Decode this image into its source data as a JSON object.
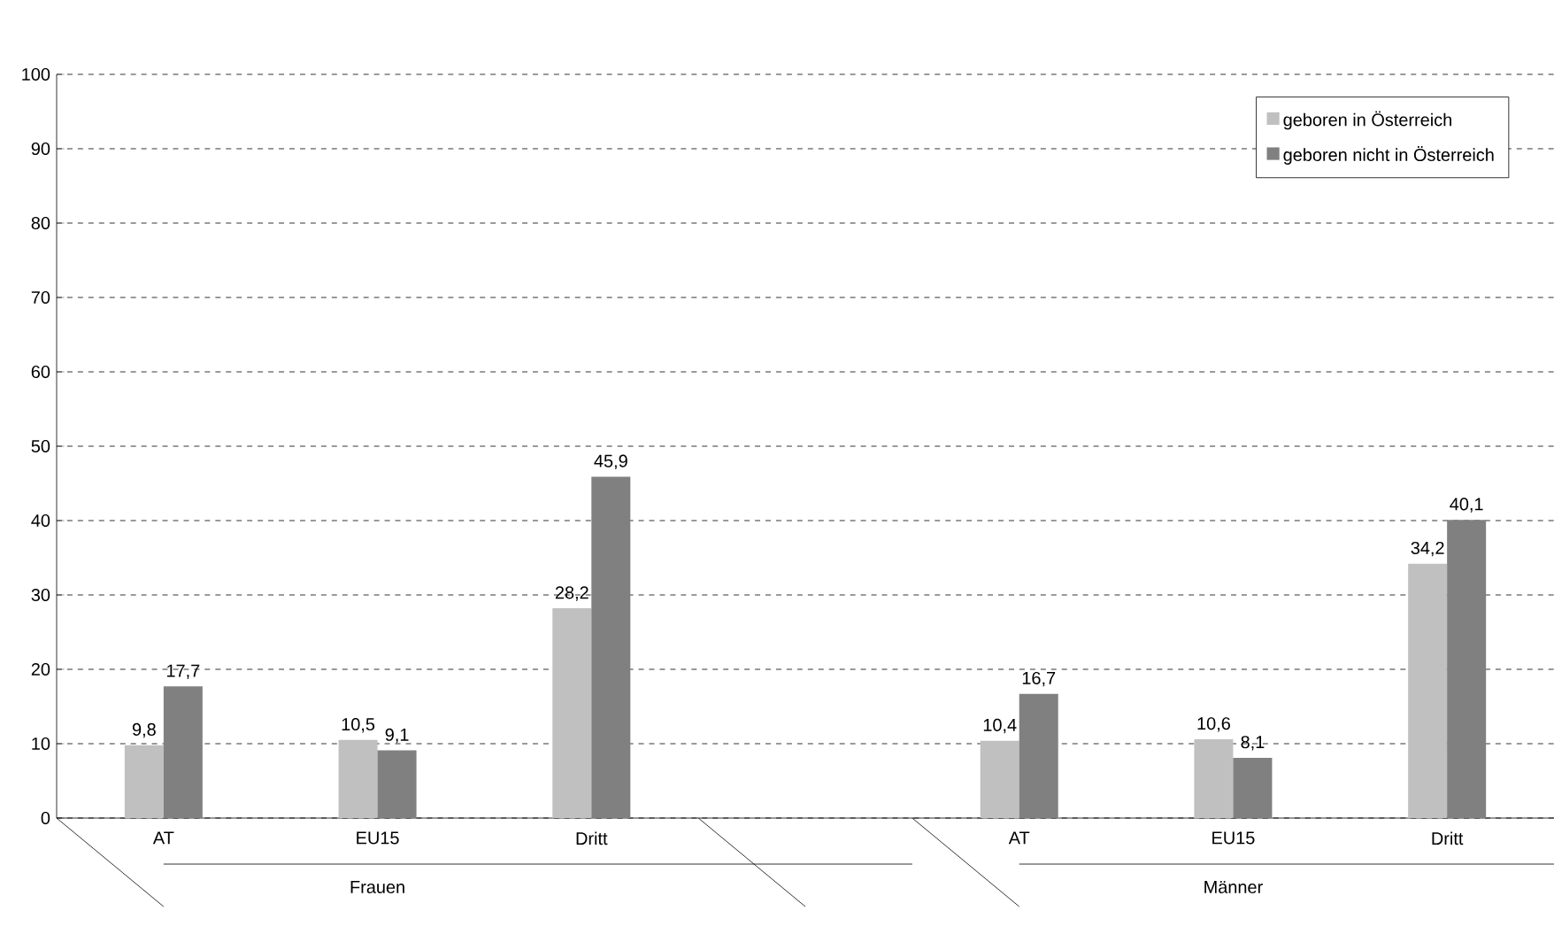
{
  "chart_data": {
    "type": "bar",
    "categories": [
      "AT",
      "EU15",
      "Dritt",
      null,
      "AT",
      "EU15",
      "Dritt"
    ],
    "series": [
      {
        "name": "geboren in Österreich",
        "color": "#c0c0c0",
        "values": [
          9.8,
          10.5,
          28.2,
          null,
          10.4,
          10.6,
          34.2
        ],
        "value_labels": [
          "9,8",
          "10,5",
          "28,2",
          null,
          "10,4",
          "10,6",
          "34,2"
        ]
      },
      {
        "name": "geboren nicht in Österreich",
        "color": "#808080",
        "values": [
          17.7,
          9.1,
          45.9,
          null,
          16.7,
          8.1,
          40.1
        ],
        "value_labels": [
          "17,7",
          "9,1",
          "45,9",
          null,
          "16,7",
          "8,1",
          "40,1"
        ]
      }
    ],
    "annotations": [
      "Frauen",
      "Männer"
    ],
    "ylim": [
      0,
      100
    ],
    "yticks": [
      0,
      10,
      20,
      30,
      40,
      50,
      60,
      70,
      80,
      90,
      100
    ],
    "grid": "y",
    "legend": "top right"
  }
}
